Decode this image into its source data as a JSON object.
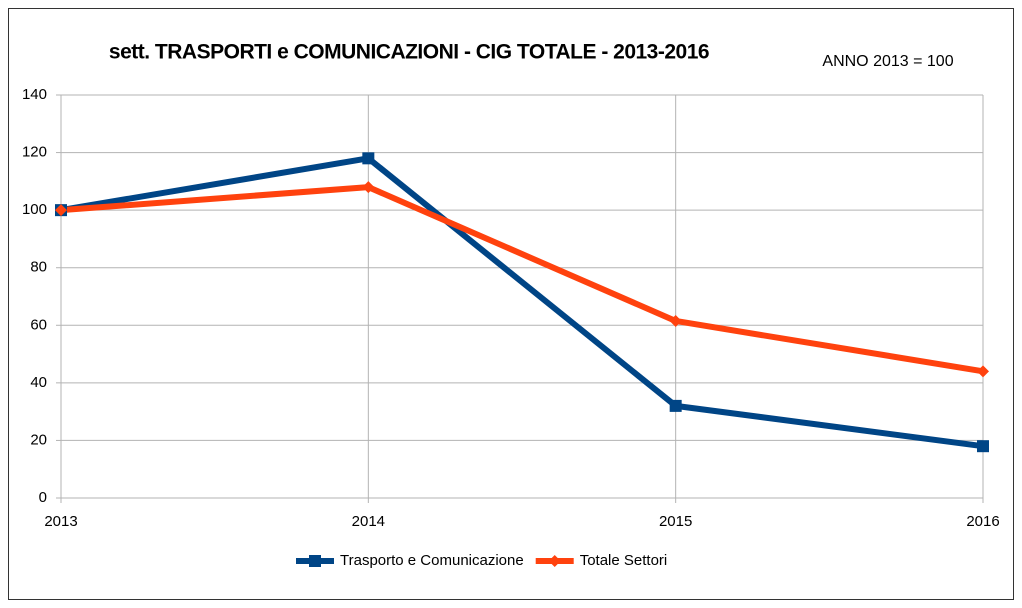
{
  "chart_data": {
    "type": "line",
    "title": "sett. TRASPORTI e COMUNICAZIONI - CIG TOTALE - 2013-2016",
    "subtitle": "ANNO 2013 = 100",
    "categories": [
      "2013",
      "2014",
      "2015",
      "2016"
    ],
    "series": [
      {
        "name": "Trasporto e Comunicazione",
        "color": "#004586",
        "marker": "square",
        "values": [
          100,
          118,
          32,
          18
        ]
      },
      {
        "name": "Totale Settori",
        "color": "#ff420e",
        "marker": "diamond",
        "values": [
          100,
          108,
          61.5,
          44
        ]
      }
    ],
    "ylim": [
      0,
      140
    ],
    "yticks": [
      0,
      20,
      40,
      60,
      80,
      100,
      120,
      140
    ],
    "grid": true,
    "legend": "bottom"
  }
}
